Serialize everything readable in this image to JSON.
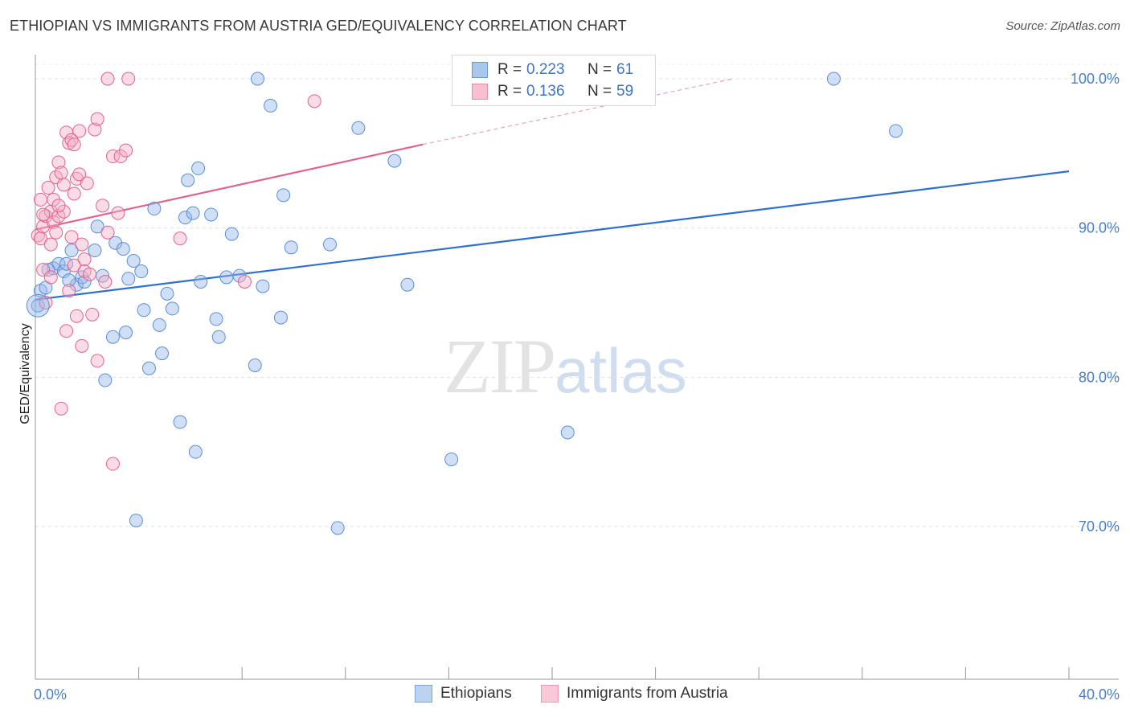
{
  "header": {
    "title": "ETHIOPIAN VS IMMIGRANTS FROM AUSTRIA GED/EQUIVALENCY CORRELATION CHART",
    "source": "Source: ZipAtlas.com"
  },
  "watermark": {
    "zip": "ZIP",
    "atlas": "atlas"
  },
  "legend": {
    "r_label": "R =",
    "n_label": "N =",
    "rows": [
      {
        "r": "0.223",
        "n": "61",
        "color": "#a9c6ec",
        "border": "#6a9ad6"
      },
      {
        "r": "0.136",
        "n": "59",
        "color": "#f7bfd0",
        "border": "#e68ea9"
      }
    ]
  },
  "bottom_legend": [
    {
      "label": "Ethiopians",
      "color": "#bcd3f0",
      "border": "#7aa4db"
    },
    {
      "label": "Immigrants from Austria",
      "color": "#f9c9d7",
      "border": "#e99ab2"
    }
  ],
  "chart_data": {
    "type": "scatter",
    "title": "ETHIOPIAN VS IMMIGRANTS FROM AUSTRIA GED/EQUIVALENCY CORRELATION CHART",
    "xlabel": "",
    "ylabel": "GED/Equivalency",
    "xlim": [
      0,
      40
    ],
    "ylim": [
      60,
      100
    ],
    "x_tick_labels": [
      "0.0%",
      "40.0%"
    ],
    "y_ticks": [
      70,
      80,
      90,
      100
    ],
    "y_tick_labels": [
      "70.0%",
      "80.0%",
      "90.0%",
      "100.0%"
    ],
    "grid": true,
    "series": [
      {
        "name": "Ethiopians",
        "color": "#5a8fd6",
        "fill": "rgba(150,185,235,0.45)",
        "trend": {
          "x": [
            0,
            40
          ],
          "y": [
            85.2,
            93.8
          ],
          "dashed_from": null
        },
        "points": [
          [
            0.1,
            84.8
          ],
          [
            0.2,
            85.8
          ],
          [
            0.4,
            86.0
          ],
          [
            0.7,
            87.3
          ],
          [
            0.9,
            87.6
          ],
          [
            1.1,
            87.1
          ],
          [
            1.2,
            87.6
          ],
          [
            1.4,
            88.5
          ],
          [
            1.6,
            86.2
          ],
          [
            1.8,
            86.7
          ],
          [
            1.9,
            86.4
          ],
          [
            2.3,
            88.5
          ],
          [
            2.4,
            90.1
          ],
          [
            2.6,
            86.8
          ],
          [
            2.7,
            79.8
          ],
          [
            3.0,
            82.7
          ],
          [
            3.1,
            89.0
          ],
          [
            3.4,
            88.6
          ],
          [
            3.5,
            83.0
          ],
          [
            3.6,
            86.6
          ],
          [
            3.8,
            87.8
          ],
          [
            3.9,
            70.4
          ],
          [
            4.1,
            87.1
          ],
          [
            4.2,
            84.5
          ],
          [
            4.4,
            80.6
          ],
          [
            4.6,
            91.3
          ],
          [
            4.8,
            83.5
          ],
          [
            4.9,
            81.6
          ],
          [
            5.1,
            85.6
          ],
          [
            5.3,
            84.6
          ],
          [
            5.6,
            77.0
          ],
          [
            5.8,
            90.7
          ],
          [
            5.9,
            93.2
          ],
          [
            6.1,
            91.0
          ],
          [
            6.2,
            75.0
          ],
          [
            6.3,
            94.0
          ],
          [
            6.4,
            86.4
          ],
          [
            6.8,
            90.9
          ],
          [
            7.0,
            83.9
          ],
          [
            7.1,
            82.7
          ],
          [
            7.4,
            86.7
          ],
          [
            7.6,
            89.6
          ],
          [
            7.9,
            86.8
          ],
          [
            8.5,
            80.8
          ],
          [
            8.6,
            100.0
          ],
          [
            8.8,
            86.1
          ],
          [
            9.1,
            98.2
          ],
          [
            9.5,
            84.0
          ],
          [
            9.6,
            92.2
          ],
          [
            9.9,
            88.7
          ],
          [
            11.4,
            88.9
          ],
          [
            11.7,
            69.9
          ],
          [
            12.5,
            96.7
          ],
          [
            13.9,
            94.5
          ],
          [
            14.4,
            86.2
          ],
          [
            16.1,
            74.5
          ],
          [
            20.6,
            76.3
          ],
          [
            30.9,
            100.0
          ],
          [
            33.3,
            96.5
          ],
          [
            0.5,
            87.2
          ],
          [
            1.3,
            86.5
          ]
        ]
      },
      {
        "name": "Immigrants from Austria",
        "color": "#e0648b",
        "fill": "rgba(245,175,200,0.45)",
        "trend": {
          "x": [
            0,
            15
          ],
          "y": [
            89.9,
            95.6
          ],
          "dashed_to": [
            27,
            100
          ]
        },
        "points": [
          [
            0.1,
            89.5
          ],
          [
            0.2,
            89.3
          ],
          [
            0.2,
            91.9
          ],
          [
            0.3,
            90.1
          ],
          [
            0.3,
            87.2
          ],
          [
            0.4,
            90.8
          ],
          [
            0.5,
            92.7
          ],
          [
            0.6,
            91.1
          ],
          [
            0.6,
            88.9
          ],
          [
            0.7,
            91.9
          ],
          [
            0.7,
            90.4
          ],
          [
            0.8,
            89.7
          ],
          [
            0.8,
            93.4
          ],
          [
            0.9,
            90.8
          ],
          [
            0.9,
            94.4
          ],
          [
            1.0,
            93.7
          ],
          [
            1.0,
            77.9
          ],
          [
            1.1,
            92.9
          ],
          [
            1.1,
            91.1
          ],
          [
            1.2,
            96.4
          ],
          [
            1.2,
            83.1
          ],
          [
            1.3,
            95.7
          ],
          [
            1.4,
            95.9
          ],
          [
            1.4,
            89.4
          ],
          [
            1.5,
            95.6
          ],
          [
            1.5,
            92.3
          ],
          [
            1.6,
            93.3
          ],
          [
            1.6,
            84.1
          ],
          [
            1.7,
            96.5
          ],
          [
            1.7,
            93.6
          ],
          [
            1.8,
            88.9
          ],
          [
            1.8,
            82.1
          ],
          [
            1.9,
            87.9
          ],
          [
            1.9,
            87.1
          ],
          [
            2.0,
            93.0
          ],
          [
            2.1,
            86.9
          ],
          [
            2.2,
            84.2
          ],
          [
            2.3,
            96.6
          ],
          [
            2.4,
            81.1
          ],
          [
            2.4,
            97.3
          ],
          [
            2.6,
            91.5
          ],
          [
            2.7,
            86.4
          ],
          [
            2.8,
            89.7
          ],
          [
            2.8,
            100.0
          ],
          [
            3.0,
            94.8
          ],
          [
            3.0,
            74.2
          ],
          [
            3.2,
            91.0
          ],
          [
            3.3,
            94.8
          ],
          [
            3.5,
            95.2
          ],
          [
            3.6,
            100.0
          ],
          [
            5.6,
            89.3
          ],
          [
            8.1,
            86.4
          ],
          [
            10.8,
            98.5
          ],
          [
            0.3,
            90.9
          ],
          [
            1.3,
            85.8
          ],
          [
            0.9,
            91.5
          ],
          [
            0.4,
            85.0
          ],
          [
            1.5,
            87.5
          ],
          [
            0.6,
            86.7
          ]
        ]
      }
    ]
  }
}
